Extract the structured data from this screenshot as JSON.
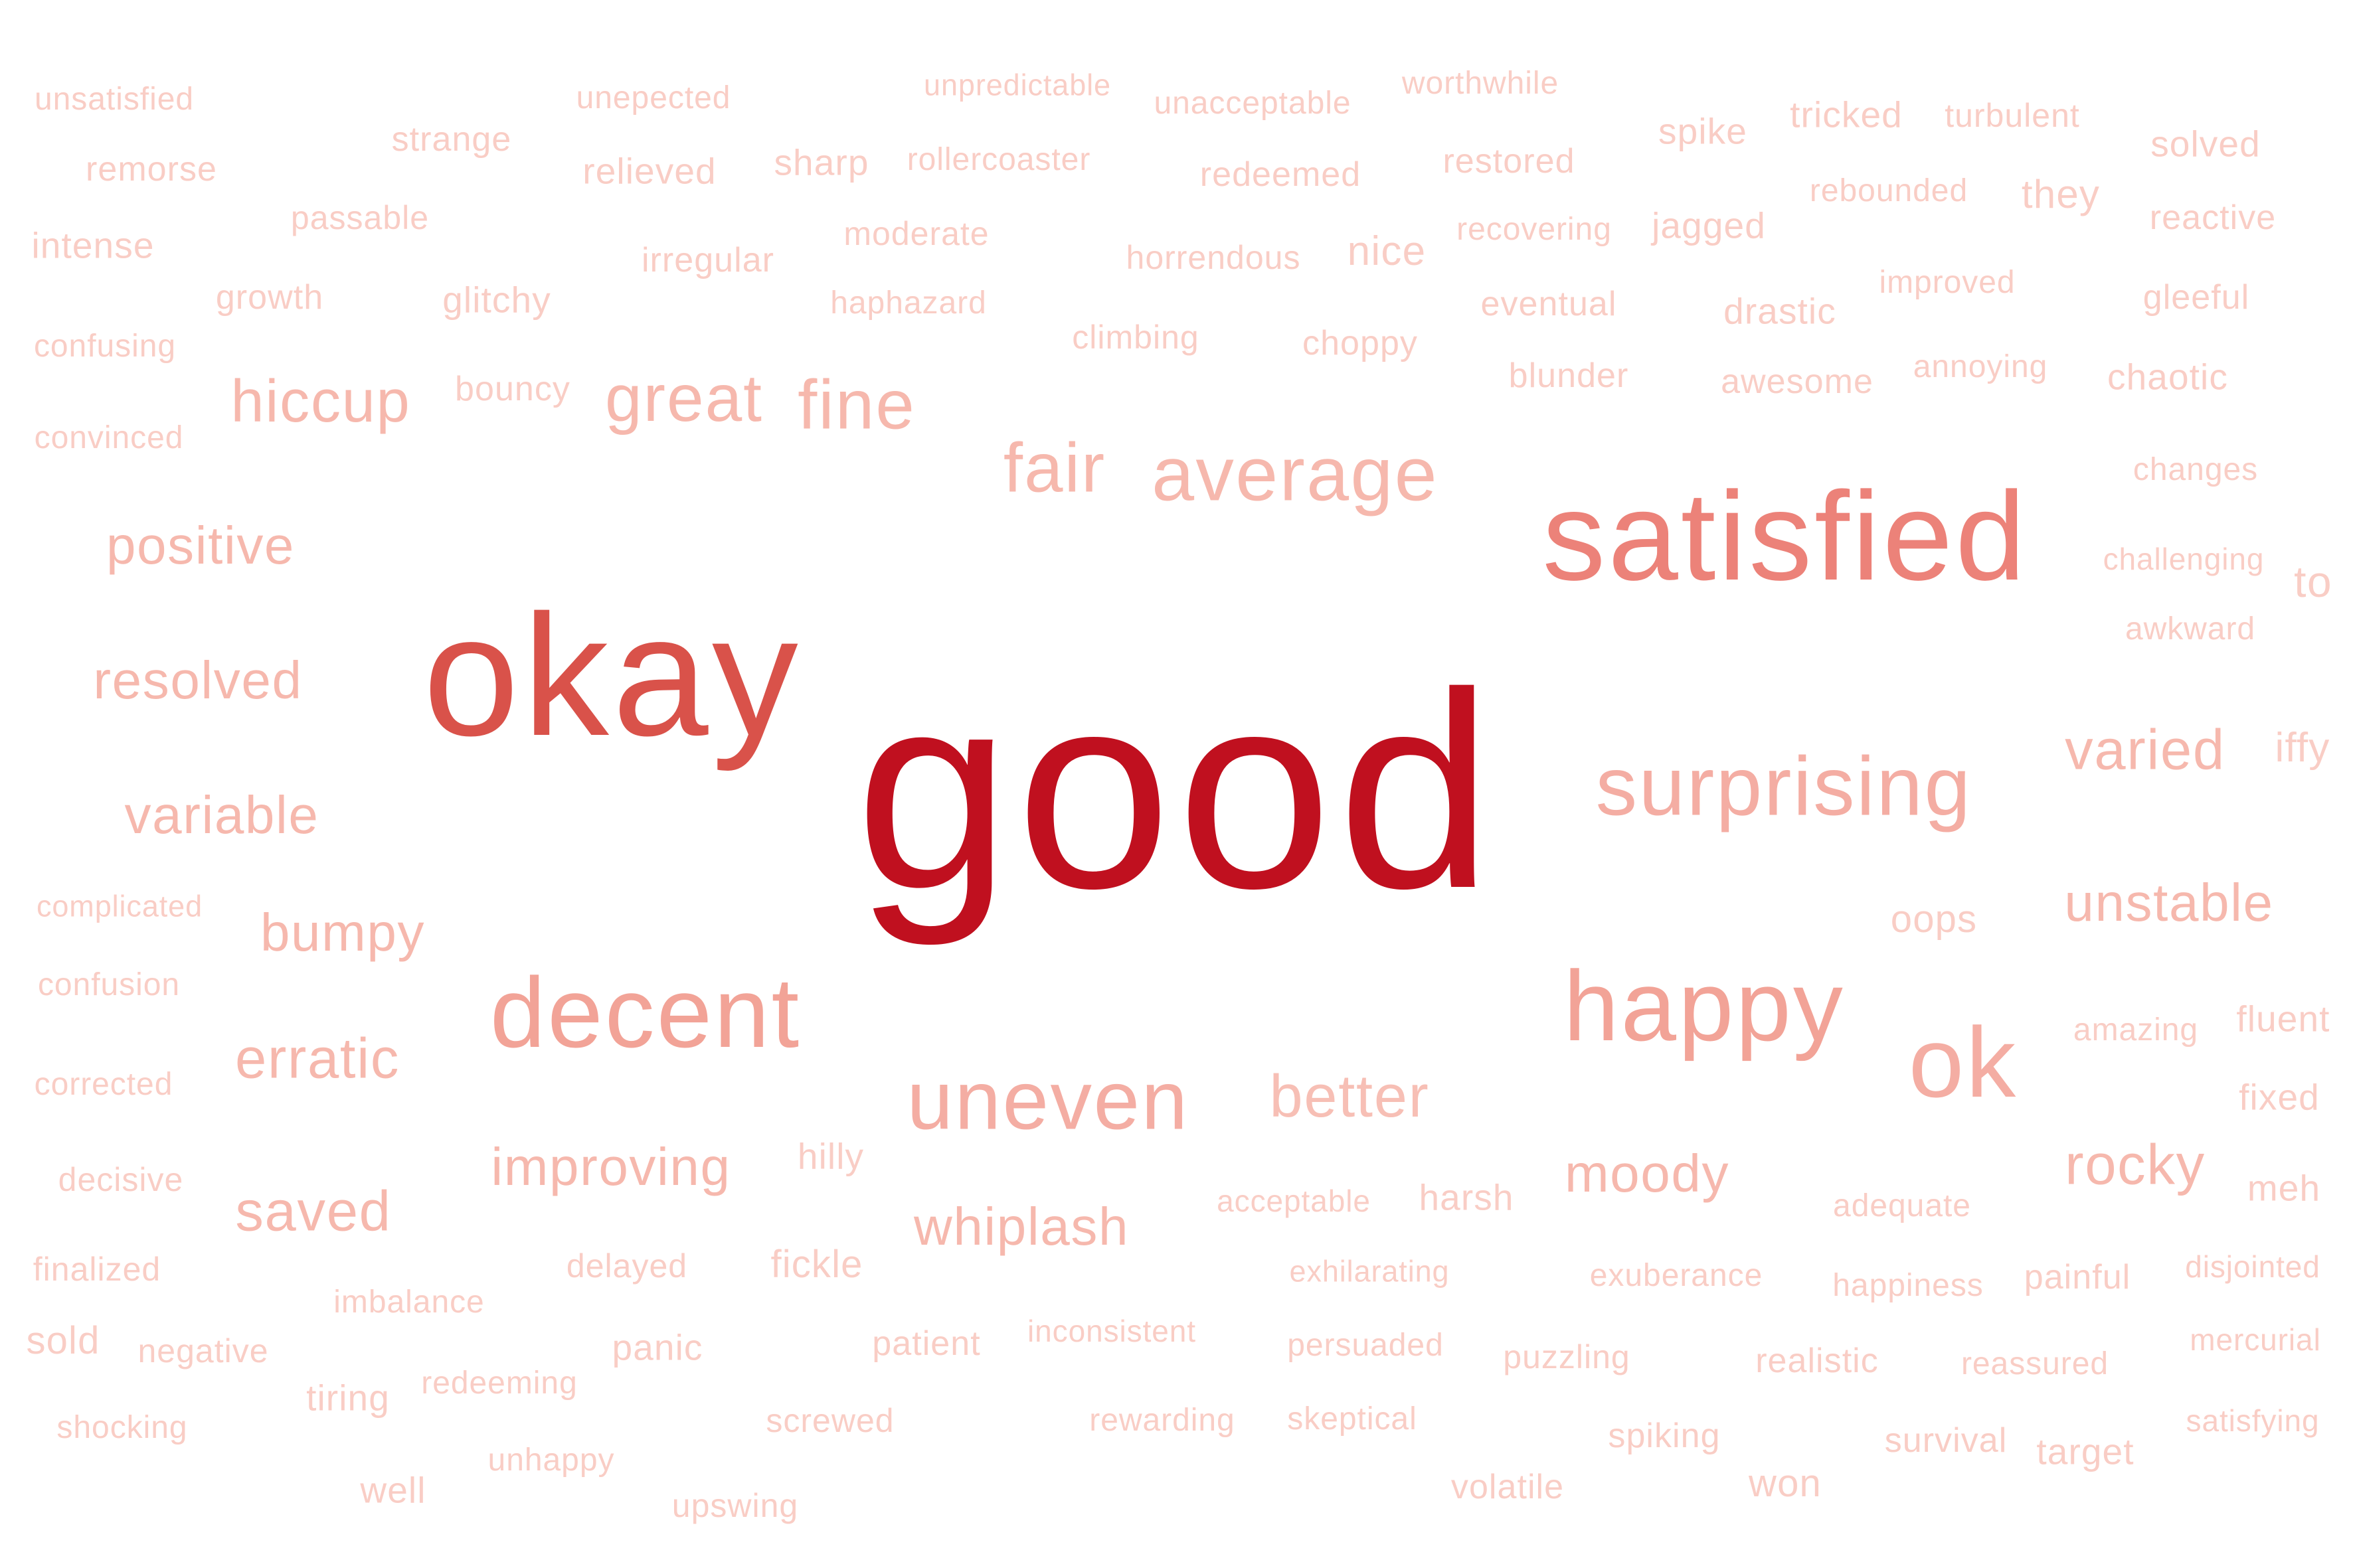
{
  "words": [
    {
      "text": "good",
      "color": "#c0101f"
    },
    {
      "text": "okay",
      "color": "#d9524a"
    },
    {
      "text": "satisfied",
      "color": "#ec8279"
    },
    {
      "text": "decent",
      "color": "#f2a397"
    },
    {
      "text": "happy",
      "color": "#f2a397"
    },
    {
      "text": "surprising",
      "color": "#f4ada3"
    },
    {
      "text": "uneven",
      "color": "#f4ada3"
    },
    {
      "text": "ok",
      "color": "#f4ada3"
    },
    {
      "text": "average",
      "color": "#f6b8ad"
    },
    {
      "text": "fair",
      "color": "#f6b8ad"
    },
    {
      "text": "fine",
      "color": "#f6b8ad"
    },
    {
      "text": "great",
      "color": "#f6b8ad"
    },
    {
      "text": "hiccup",
      "color": "#f6b8ad"
    },
    {
      "text": "positive",
      "color": "#f6b8ad"
    },
    {
      "text": "resolved",
      "color": "#f6b8ad"
    },
    {
      "text": "variable",
      "color": "#f6b8ad"
    },
    {
      "text": "bumpy",
      "color": "#f6b8ad"
    },
    {
      "text": "erratic",
      "color": "#f6b8ad"
    },
    {
      "text": "saved",
      "color": "#f6b8ad"
    },
    {
      "text": "improving",
      "color": "#f6b8ad"
    },
    {
      "text": "whiplash",
      "color": "#f6b8ad"
    },
    {
      "text": "better",
      "color": "#f7bfb5"
    },
    {
      "text": "moody",
      "color": "#f6b8ad"
    },
    {
      "text": "rocky",
      "color": "#f6b8ad"
    },
    {
      "text": "varied",
      "color": "#f6b8ad"
    },
    {
      "text": "unstable",
      "color": "#f6b8ad"
    },
    {
      "text": "unsatisfied",
      "color": "#f9cdc5"
    },
    {
      "text": "remorse",
      "color": "#f9cdc5"
    },
    {
      "text": "intense",
      "color": "#f9cdc5"
    },
    {
      "text": "confusing",
      "color": "#f9cdc5"
    },
    {
      "text": "convinced",
      "color": "#f9cdc5"
    },
    {
      "text": "strange",
      "color": "#f9cdc5"
    },
    {
      "text": "passable",
      "color": "#f9cdc5"
    },
    {
      "text": "growth",
      "color": "#f9cdc5"
    },
    {
      "text": "glitchy",
      "color": "#f9cdc5"
    },
    {
      "text": "bouncy",
      "color": "#f9cdc5"
    },
    {
      "text": "unepected",
      "color": "#f9cdc5"
    },
    {
      "text": "relieved",
      "color": "#f9cdc5"
    },
    {
      "text": "sharp",
      "color": "#f9cdc5"
    },
    {
      "text": "irregular",
      "color": "#f9cdc5"
    },
    {
      "text": "unpredictable",
      "color": "#f9cdc5"
    },
    {
      "text": "rollercoaster",
      "color": "#f9cdc5"
    },
    {
      "text": "moderate",
      "color": "#f9cdc5"
    },
    {
      "text": "haphazard",
      "color": "#f9cdc5"
    },
    {
      "text": "unacceptable",
      "color": "#f9cdc5"
    },
    {
      "text": "redeemed",
      "color": "#f9cdc5"
    },
    {
      "text": "horrendous",
      "color": "#f9cdc5"
    },
    {
      "text": "climbing",
      "color": "#f9cdc5"
    },
    {
      "text": "choppy",
      "color": "#f9cdc5"
    },
    {
      "text": "nice",
      "color": "#f9cdc5"
    },
    {
      "text": "worthwhile",
      "color": "#f9cdc5"
    },
    {
      "text": "restored",
      "color": "#f9cdc5"
    },
    {
      "text": "recovering",
      "color": "#f9cdc5"
    },
    {
      "text": "eventual",
      "color": "#f9cdc5"
    },
    {
      "text": "blunder",
      "color": "#f9cdc5"
    },
    {
      "text": "spike",
      "color": "#f9cdc5"
    },
    {
      "text": "jagged",
      "color": "#f9cdc5"
    },
    {
      "text": "drastic",
      "color": "#f9cdc5"
    },
    {
      "text": "awesome",
      "color": "#f9cdc5"
    },
    {
      "text": "tricked",
      "color": "#f9cdc5"
    },
    {
      "text": "rebounded",
      "color": "#f9cdc5"
    },
    {
      "text": "improved",
      "color": "#f9cdc5"
    },
    {
      "text": "annoying",
      "color": "#f9cdc5"
    },
    {
      "text": "turbulent",
      "color": "#f9cdc5"
    },
    {
      "text": "they",
      "color": "#f9cdc5"
    },
    {
      "text": "solved",
      "color": "#f9cdc5"
    },
    {
      "text": "reactive",
      "color": "#f9cdc5"
    },
    {
      "text": "gleeful",
      "color": "#f9cdc5"
    },
    {
      "text": "chaotic",
      "color": "#f9cdc5"
    },
    {
      "text": "changes",
      "color": "#f9cdc5"
    },
    {
      "text": "challenging",
      "color": "#f9cdc5"
    },
    {
      "text": "to",
      "color": "#f9cdc5"
    },
    {
      "text": "awkward",
      "color": "#f9cdc5"
    },
    {
      "text": "iffy",
      "color": "#f9cdc5"
    },
    {
      "text": "oops",
      "color": "#f9cdc5"
    },
    {
      "text": "amazing",
      "color": "#f9cdc5"
    },
    {
      "text": "fluent",
      "color": "#f9cdc5"
    },
    {
      "text": "fixed",
      "color": "#f9cdc5"
    },
    {
      "text": "meh",
      "color": "#f9cdc5"
    },
    {
      "text": "complicated",
      "color": "#f9cdc5"
    },
    {
      "text": "confusion",
      "color": "#f9cdc5"
    },
    {
      "text": "corrected",
      "color": "#f9cdc5"
    },
    {
      "text": "decisive",
      "color": "#f9cdc5"
    },
    {
      "text": "finalized",
      "color": "#f9cdc5"
    },
    {
      "text": "sold",
      "color": "#f9cdc5"
    },
    {
      "text": "negative",
      "color": "#f9cdc5"
    },
    {
      "text": "shocking",
      "color": "#f9cdc5"
    },
    {
      "text": "imbalance",
      "color": "#f9cdc5"
    },
    {
      "text": "tiring",
      "color": "#f9cdc5"
    },
    {
      "text": "redeeming",
      "color": "#f9cdc5"
    },
    {
      "text": "well",
      "color": "#f9cdc5"
    },
    {
      "text": "unhappy",
      "color": "#f9cdc5"
    },
    {
      "text": "delayed",
      "color": "#f9cdc5"
    },
    {
      "text": "panic",
      "color": "#f9cdc5"
    },
    {
      "text": "upswing",
      "color": "#f9cdc5"
    },
    {
      "text": "hilly",
      "color": "#f9cdc5"
    },
    {
      "text": "fickle",
      "color": "#f9cdc5"
    },
    {
      "text": "patient",
      "color": "#f9cdc5"
    },
    {
      "text": "screwed",
      "color": "#f9cdc5"
    },
    {
      "text": "inconsistent",
      "color": "#f9cdc5"
    },
    {
      "text": "rewarding",
      "color": "#f9cdc5"
    },
    {
      "text": "acceptable",
      "color": "#f9cdc5"
    },
    {
      "text": "exhilarating",
      "color": "#f9cdc5"
    },
    {
      "text": "persuaded",
      "color": "#f9cdc5"
    },
    {
      "text": "skeptical",
      "color": "#f9cdc5"
    },
    {
      "text": "harsh",
      "color": "#f9cdc5"
    },
    {
      "text": "puzzling",
      "color": "#f9cdc5"
    },
    {
      "text": "volatile",
      "color": "#f9cdc5"
    },
    {
      "text": "exuberance",
      "color": "#f9cdc5"
    },
    {
      "text": "spiking",
      "color": "#f9cdc5"
    },
    {
      "text": "won",
      "color": "#f9cdc5"
    },
    {
      "text": "adequate",
      "color": "#f9cdc5"
    },
    {
      "text": "happiness",
      "color": "#f9cdc5"
    },
    {
      "text": "realistic",
      "color": "#f9cdc5"
    },
    {
      "text": "survival",
      "color": "#f9cdc5"
    },
    {
      "text": "painful",
      "color": "#f9cdc5"
    },
    {
      "text": "reassured",
      "color": "#f9cdc5"
    },
    {
      "text": "target",
      "color": "#f9cdc5"
    },
    {
      "text": "disjointed",
      "color": "#f9cdc5"
    },
    {
      "text": "mercurial",
      "color": "#f9cdc5"
    },
    {
      "text": "satisfying",
      "color": "#f9cdc5"
    }
  ]
}
